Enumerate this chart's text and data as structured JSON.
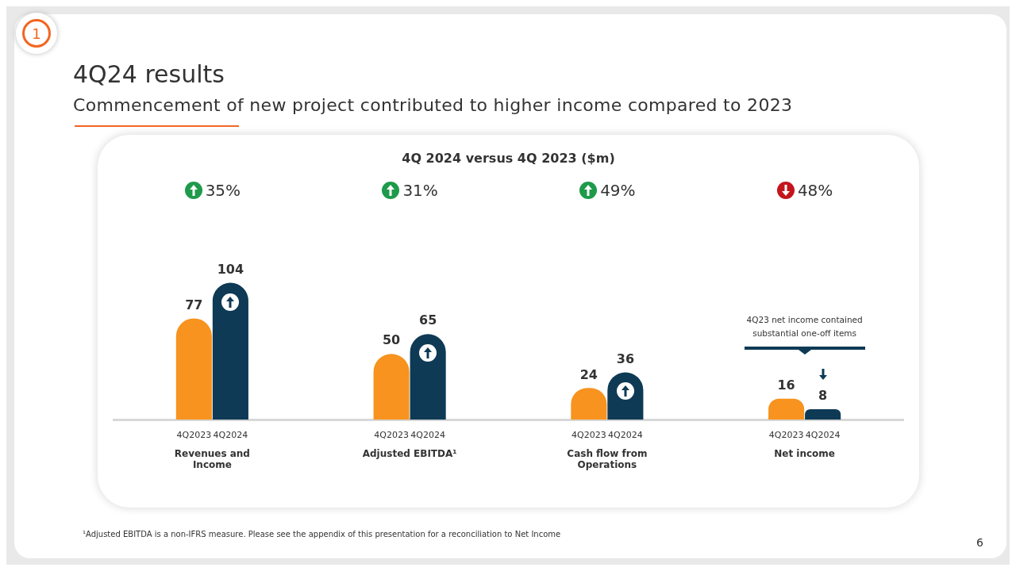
{
  "chart_data": {
    "type": "bar",
    "title": "4Q24 results",
    "subtitle": "Commencement of new project contributed to higher income compared to 2023",
    "categories": [
      "Revenues and Income",
      "Adjusted EBITDA¹",
      "Cash flow from Operations",
      "Net income"
    ],
    "series": [
      {
        "name": "4Q2023",
        "color": "#f7931e",
        "values": [
          77,
          50,
          24,
          16
        ]
      },
      {
        "name": "4Q2024",
        "color": "#0e3a55",
        "values": [
          104,
          65,
          36,
          8
        ]
      }
    ],
    "data_labels": true,
    "legend": false,
    "grid": false,
    "tick_labels": "x",
    "annotations": [
      "4Q 2024 versus 4Q 2023 ($m)",
      "35%",
      "31%",
      "49%",
      "48%",
      "4Q23 net income contained substantial one-off items",
      "¹Adjusted EBITDA is a non-IFRS measure. Please see the appendix of this presentation for a reconciliation to Net Income",
      "1",
      "6"
    ]
  }
}
